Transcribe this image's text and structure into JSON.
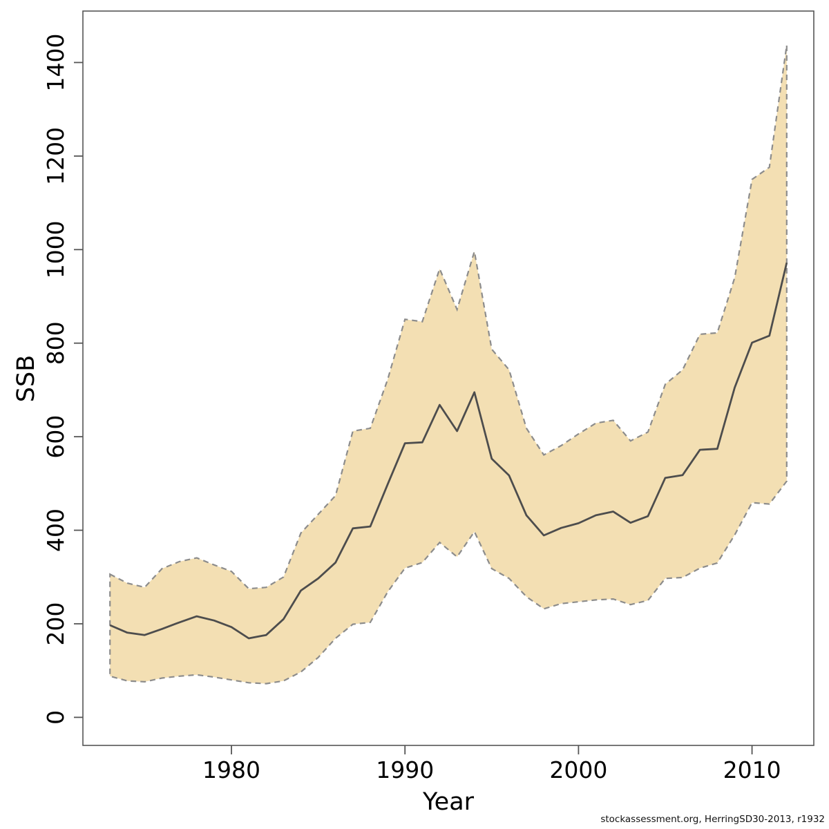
{
  "footer": {
    "text": "stockassessment.org, HerringSD30-2013, r1932"
  },
  "chart_data": {
    "type": "area",
    "title": "",
    "xlabel": "Year",
    "ylabel": "SSB",
    "x": [
      1973,
      1974,
      1975,
      1976,
      1977,
      1978,
      1979,
      1980,
      1981,
      1982,
      1983,
      1984,
      1985,
      1986,
      1987,
      1988,
      1989,
      1990,
      1991,
      1992,
      1993,
      1994,
      1995,
      1996,
      1997,
      1998,
      1999,
      2000,
      2001,
      2002,
      2003,
      2004,
      2005,
      2006,
      2007,
      2008,
      2009,
      2010,
      2011,
      2012
    ],
    "series": [
      {
        "name": "SSB estimate",
        "values": [
          197,
          181,
          176,
          189,
          203,
          216,
          207,
          193,
          169,
          176,
          210,
          271,
          297,
          331,
          404,
          408,
          498,
          586,
          588,
          668,
          612,
          695,
          553,
          517,
          432,
          389,
          405,
          415,
          432,
          440,
          416,
          430,
          512,
          518,
          572,
          574,
          705,
          801,
          816,
          972
        ]
      },
      {
        "name": "CI lower",
        "values": [
          88,
          78,
          76,
          84,
          88,
          91,
          86,
          80,
          74,
          72,
          78,
          97,
          128,
          169,
          199,
          203,
          268,
          319,
          331,
          374,
          343,
          397,
          318,
          297,
          258,
          232,
          243,
          247,
          251,
          253,
          241,
          250,
          297,
          299,
          319,
          330,
          390,
          459,
          456,
          505
        ]
      },
      {
        "name": "CI upper",
        "values": [
          306,
          287,
          278,
          318,
          333,
          341,
          326,
          312,
          275,
          278,
          300,
          394,
          434,
          474,
          612,
          618,
          722,
          851,
          846,
          959,
          872,
          996,
          787,
          743,
          618,
          561,
          581,
          606,
          629,
          635,
          591,
          610,
          712,
          743,
          819,
          822,
          940,
          1150,
          1176,
          1437
        ]
      }
    ],
    "x_ticks": [
      1980,
      1990,
      2000,
      2010
    ],
    "y_ticks": [
      0,
      200,
      400,
      600,
      800,
      1000,
      1200,
      1400
    ],
    "xlim": [
      1971.44,
      2013.56
    ],
    "ylim": [
      -60,
      1510
    ],
    "grid": false,
    "legend": "none",
    "colors": {
      "band_fill": "#F3DFB3",
      "band_border": "#8C8C8C",
      "line": "#4D4D4D",
      "axis": "#555555",
      "tick_label": "#000000"
    }
  }
}
